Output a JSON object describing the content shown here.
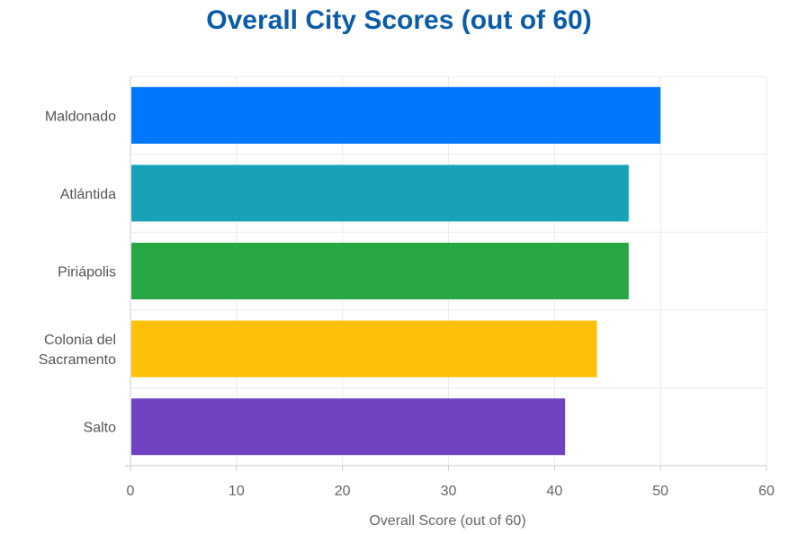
{
  "chart_data": {
    "type": "bar",
    "orientation": "horizontal",
    "title": "Overall City Scores (out of 60)",
    "xlabel": "Overall Score (out of 60)",
    "ylabel": "",
    "xlim": [
      0,
      60
    ],
    "xticks": [
      0,
      10,
      20,
      30,
      40,
      50,
      60
    ],
    "grid": true,
    "legend": "none",
    "categories": [
      [
        "Maldonado"
      ],
      [
        "Atlántida"
      ],
      [
        "Piriápolis"
      ],
      [
        "Colonia del",
        "Sacramento"
      ],
      [
        "Salto"
      ]
    ],
    "values": [
      50,
      47,
      47,
      44,
      41
    ],
    "colors": [
      "#0077ff",
      "#17a2b8",
      "#28a745",
      "#ffc107",
      "#6f42c1"
    ]
  }
}
